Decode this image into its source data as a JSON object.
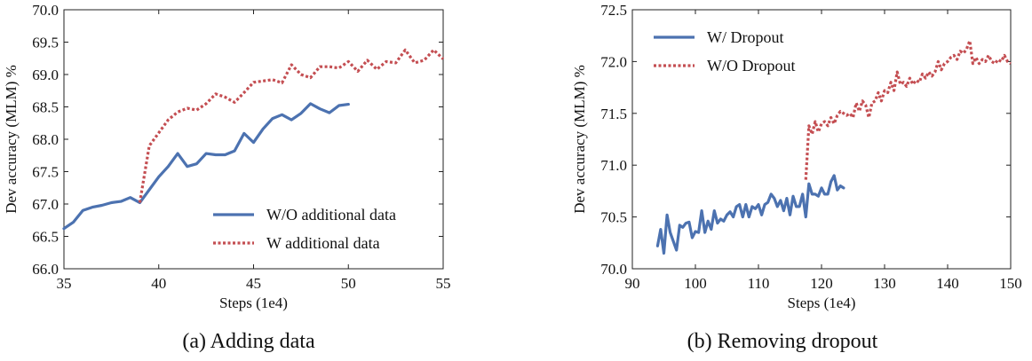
{
  "chart_data": [
    {
      "type": "line",
      "caption": "(a) Adding data",
      "xlabel": "Steps (1e4)",
      "ylabel": "Dev accuracy (MLM) %",
      "xlim": [
        35,
        55
      ],
      "ylim": [
        66.0,
        70.0
      ],
      "xticks": [
        35,
        40,
        45,
        50,
        55
      ],
      "yticks": [
        66.0,
        66.5,
        67.0,
        67.5,
        68.0,
        68.5,
        69.0,
        69.5,
        70.0
      ],
      "ytick_decimals": 1,
      "legend": "lower-right",
      "series": [
        {
          "name": "W/O additional data",
          "style": "solid",
          "color": "#4c72b0",
          "x": [
            35,
            35.5,
            36,
            36.5,
            37,
            37.5,
            38,
            38.5,
            39,
            40,
            40.5,
            41,
            41.5,
            42,
            42.5,
            43,
            43.5,
            44,
            44.5,
            45,
            45.5,
            46,
            46.5,
            47,
            47.5,
            48,
            48.5,
            49,
            49.5,
            50
          ],
          "y": [
            66.62,
            66.72,
            66.9,
            66.95,
            66.98,
            67.02,
            67.04,
            67.1,
            67.02,
            67.42,
            67.58,
            67.78,
            67.58,
            67.62,
            67.78,
            67.76,
            67.76,
            67.82,
            68.09,
            67.95,
            68.16,
            68.32,
            68.38,
            68.3,
            68.4,
            68.55,
            68.47,
            68.41,
            68.52,
            68.54
          ]
        },
        {
          "name": "W additional data",
          "style": "dotted",
          "color": "#c44e52",
          "x": [
            39,
            39.5,
            40,
            40.5,
            41,
            41.5,
            42,
            42.5,
            43,
            43.5,
            44,
            44.5,
            45,
            45.5,
            46,
            46.5,
            47,
            47.5,
            48,
            48.5,
            49,
            49.5,
            50,
            50.5,
            51,
            51.5,
            52,
            52.5,
            53,
            53.5,
            54,
            54.5,
            55
          ],
          "y": [
            67.02,
            67.9,
            68.1,
            68.3,
            68.42,
            68.48,
            68.45,
            68.55,
            68.7,
            68.65,
            68.57,
            68.72,
            68.88,
            68.9,
            68.92,
            68.87,
            69.15,
            69.0,
            68.95,
            69.12,
            69.12,
            69.1,
            69.2,
            69.05,
            69.22,
            69.08,
            69.2,
            69.18,
            69.38,
            69.18,
            69.22,
            69.38,
            69.24
          ]
        }
      ]
    },
    {
      "type": "line",
      "caption": "(b) Removing dropout",
      "xlabel": "Steps (1e4)",
      "ylabel": "Dev accuracy (MLM) %",
      "xlim": [
        90,
        150
      ],
      "ylim": [
        70.0,
        72.5
      ],
      "xticks": [
        90,
        100,
        110,
        120,
        130,
        140,
        150
      ],
      "yticks": [
        70.0,
        70.5,
        71.0,
        71.5,
        72.0,
        72.5
      ],
      "ytick_decimals": 1,
      "legend": "top-left",
      "series": [
        {
          "name": "W/ Dropout",
          "style": "solid",
          "color": "#4c72b0",
          "x": [
            94,
            94.5,
            95,
            95.5,
            96,
            97,
            97.5,
            98,
            98.5,
            99,
            99.5,
            100,
            100.5,
            101,
            101.5,
            102,
            102.5,
            103,
            103.5,
            104,
            104.5,
            105,
            105.5,
            106,
            106.5,
            107,
            107.5,
            108,
            108.5,
            109,
            109.5,
            110,
            110.5,
            111,
            111.5,
            112,
            112.5,
            113,
            113.5,
            114,
            114.5,
            115,
            115.5,
            116,
            116.5,
            117,
            117.5,
            118,
            118.5,
            119,
            119.5,
            120,
            120.5,
            121,
            121.5,
            122,
            122.5,
            123,
            123.5
          ],
          "y": [
            70.22,
            70.38,
            70.15,
            70.52,
            70.35,
            70.18,
            70.42,
            70.4,
            70.44,
            70.45,
            70.3,
            70.36,
            70.35,
            70.56,
            70.35,
            70.46,
            70.38,
            70.56,
            70.44,
            70.48,
            70.46,
            70.52,
            70.55,
            70.5,
            70.6,
            70.62,
            70.5,
            70.62,
            70.5,
            70.6,
            70.58,
            70.62,
            70.52,
            70.62,
            70.64,
            70.72,
            70.68,
            70.6,
            70.66,
            70.56,
            70.68,
            70.52,
            70.7,
            70.6,
            70.6,
            70.72,
            70.5,
            70.82,
            70.72,
            70.72,
            70.7,
            70.78,
            70.72,
            70.72,
            70.84,
            70.9,
            70.76,
            70.8,
            70.78
          ]
        },
        {
          "name": "W/O Dropout",
          "style": "dotted",
          "color": "#c44e52",
          "x": [
            117.5,
            118,
            118.5,
            119,
            119.5,
            120,
            120.5,
            121,
            121.5,
            122,
            122.5,
            123,
            123.5,
            124,
            124.5,
            125,
            125.5,
            126,
            126.5,
            127,
            127.5,
            128,
            128.5,
            129,
            129.5,
            130,
            130.5,
            131,
            131.5,
            132,
            132.5,
            133,
            133.5,
            134,
            134.5,
            135,
            135.5,
            136,
            136.5,
            137,
            137.5,
            138,
            138.5,
            139,
            139.5,
            140,
            140.5,
            141,
            141.5,
            142,
            142.5,
            143,
            143.5,
            144,
            144.5,
            145,
            145.5,
            146,
            146.5,
            147,
            147.5,
            148,
            148.5,
            149,
            149.5,
            150
          ],
          "y": [
            70.86,
            71.38,
            71.3,
            71.42,
            71.32,
            71.4,
            71.42,
            71.38,
            71.46,
            71.4,
            71.48,
            71.52,
            71.5,
            71.48,
            71.5,
            71.46,
            71.6,
            71.52,
            71.62,
            71.58,
            71.46,
            71.6,
            71.62,
            71.7,
            71.62,
            71.72,
            71.7,
            71.8,
            71.72,
            71.9,
            71.78,
            71.8,
            71.76,
            71.84,
            71.78,
            71.82,
            71.8,
            71.88,
            71.84,
            71.9,
            71.86,
            71.9,
            72.0,
            71.92,
            71.98,
            72.0,
            72.04,
            72.06,
            72.02,
            72.1,
            72.08,
            72.12,
            72.2,
            71.98,
            72.04,
            71.98,
            72.02,
            72.0,
            72.06,
            72.0,
            71.98,
            72.02,
            72.0,
            72.06,
            72.0,
            71.98
          ]
        }
      ]
    }
  ]
}
